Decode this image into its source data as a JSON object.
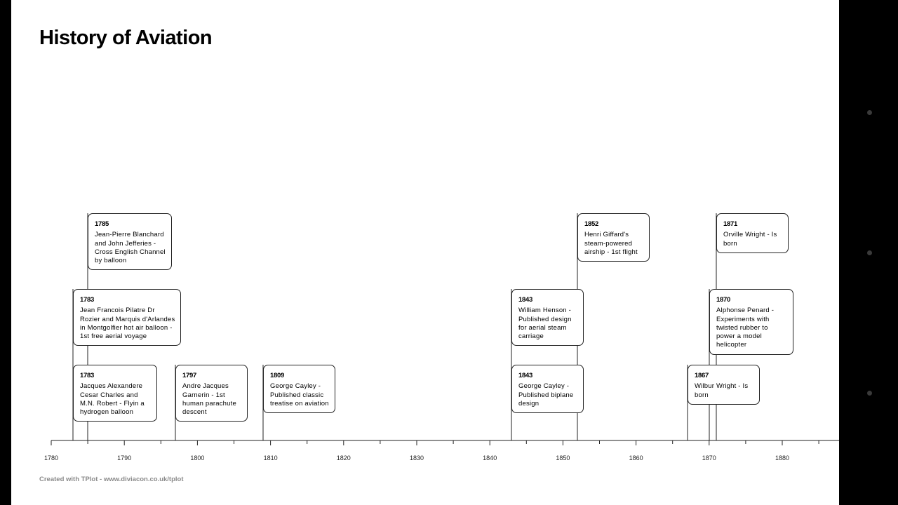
{
  "title": "History of Aviation",
  "credit": "Created with TPlot - www.diviacon.co.uk/tplot",
  "side_dots": 3,
  "timeline": {
    "axis": {
      "min": 1780,
      "max": 1891,
      "major_step": 10,
      "minor_step": 5
    },
    "events": [
      {
        "year_label": "1783",
        "text": "Jacques Alexandere Cesar Charles and M.N. Robert - Flyin a hydrogen balloon",
        "year": 1783,
        "row": 0
      },
      {
        "year_label": "1783",
        "text": "Jean Francois Pilatre Dr Rozier and Marquis d'Arlandes in Montgolfier hot air balloon - 1st free aerial voyage",
        "year": 1783,
        "row": 1
      },
      {
        "year_label": "1785",
        "text": "Jean-Pierre Blanchard and John Jefferies - Cross English Channel by balloon",
        "year": 1785,
        "row": 2
      },
      {
        "year_label": "1797",
        "text": "Andre Jacques Garnerin - 1st human parachute descent",
        "year": 1797,
        "row": 0
      },
      {
        "year_label": "1809",
        "text": "George Cayley - Published classic treatise on aviation",
        "year": 1809,
        "row": 0
      },
      {
        "year_label": "1843",
        "text": "George Cayley - Published biplane design",
        "year": 1843,
        "row": 0
      },
      {
        "year_label": "1843",
        "text": "William Henson - Published design for aerial steam carriage",
        "year": 1843,
        "row": 1
      },
      {
        "year_label": "1852",
        "text": "Henri Giffard's steam-powered airship - 1st flight",
        "year": 1852,
        "row": 2
      },
      {
        "year_label": "1867",
        "text": "Wilbur Wright - Is born",
        "year": 1867,
        "row": 0
      },
      {
        "year_label": "1870",
        "text": "Alphonse Penard - Experiments with twisted rubber to power a model helicopter",
        "year": 1870,
        "row": 1
      },
      {
        "year_label": "1871",
        "text": "Orville Wright - Is born",
        "year": 1871,
        "row": 2
      }
    ]
  }
}
